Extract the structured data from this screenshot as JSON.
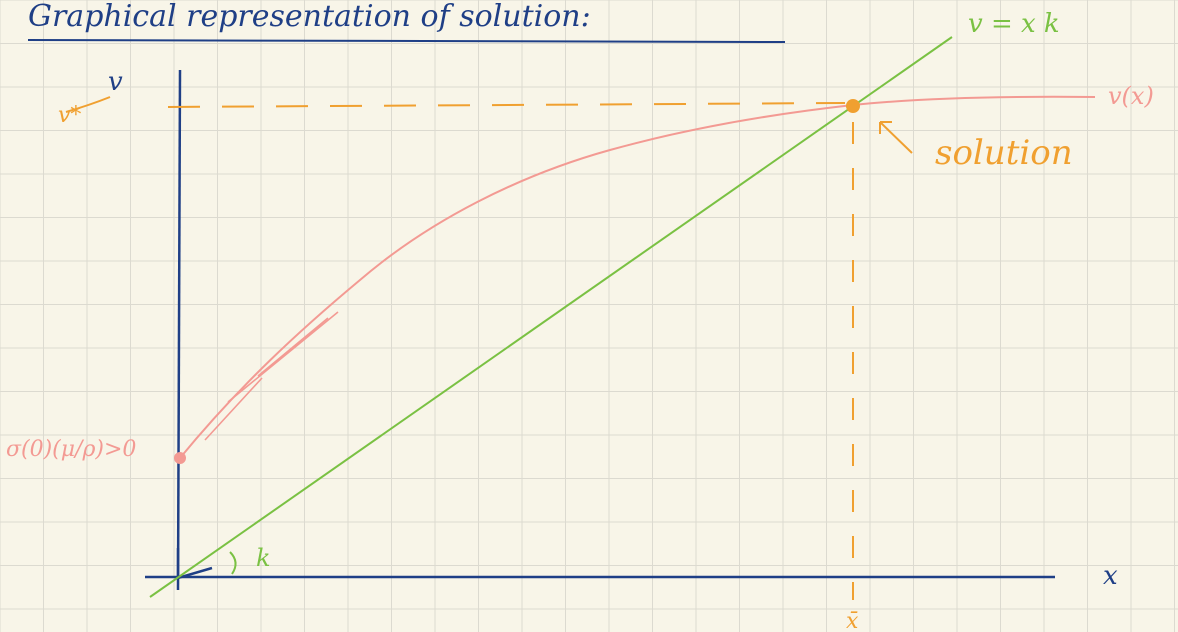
{
  "title": "Graphical representation of solution:",
  "labels": {
    "line_label": "v = x k",
    "curve_label": "v(x)",
    "solution_label": "solution",
    "y_axis_label": "v",
    "v_star_label": "v*",
    "intercept_label": "σ(0)(μ/ρ)>0",
    "slope_label": "k",
    "x_axis_label": "x",
    "x_star_label": "x̄"
  },
  "colors": {
    "paper": "#f8f5e8",
    "grid": "#dcdad0",
    "axes": "#1f3f86",
    "title_ink": "#1f3f86",
    "line": "#7ac143",
    "curve": "#f39a93",
    "guide": "#f0a030",
    "solution_point": "#f0a030",
    "intercept_point": "#f39a93"
  }
}
